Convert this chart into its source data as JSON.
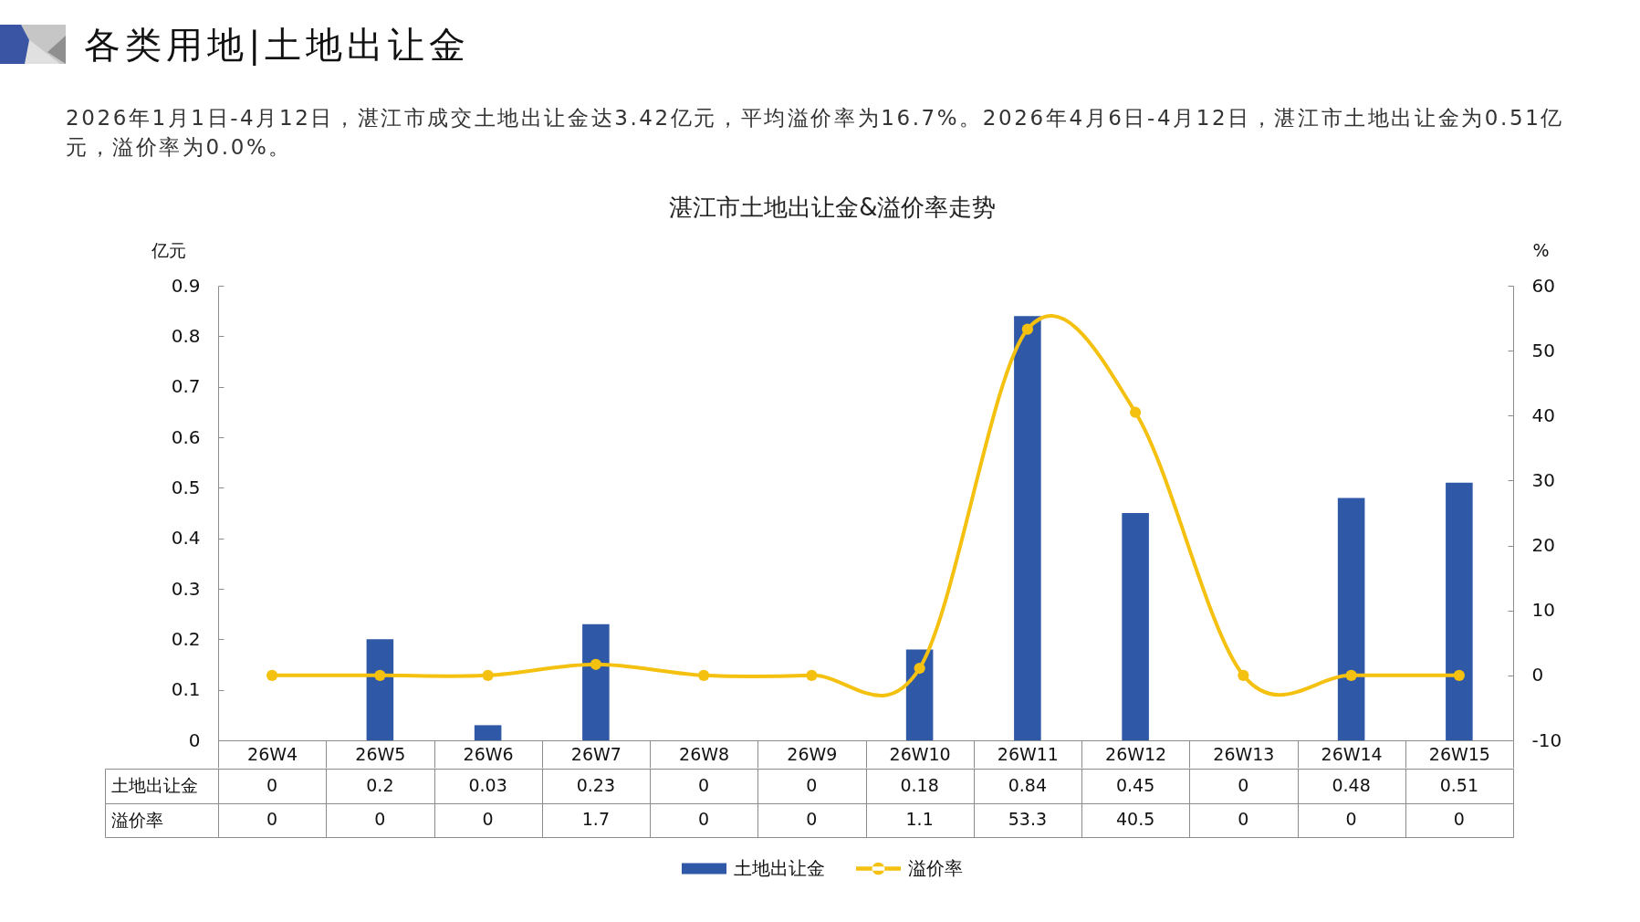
{
  "chart_data": {
    "type": "bar",
    "title": "各类用地|土地出让金",
    "subtitle": "2026年1月1日-4月12日，湛江市成交土地出让金达3.42亿元，平均溢价率为16.7%。2026年4月6日-4月12日，湛江市土地出让金为0.51亿元，溢价率为0.0%。",
    "annotations": [
      "湛江市土地出让金&溢价率走势"
    ],
    "ylabel": "亿元",
    "y2label": "%",
    "categories": [
      "26W4",
      "26W5",
      "26W6",
      "26W7",
      "26W8",
      "26W9",
      "26W10",
      "26W11",
      "26W12",
      "26W13",
      "26W14",
      "26W15"
    ],
    "series": [
      {
        "name": "土地出让金",
        "color": "#2f59a7",
        "values": [
          0,
          0.2,
          0.03,
          0.23,
          0,
          0,
          0.18,
          0.84,
          0.45,
          0,
          0.48,
          0.51
        ]
      },
      {
        "name": "溢价率",
        "type": "line",
        "axis": "y2",
        "color": "#f5c110",
        "values": [
          0,
          0,
          0,
          1.7,
          0,
          0,
          1.1,
          53.3,
          40.5,
          0,
          0,
          0
        ]
      }
    ],
    "ylim": [
      0,
      0.9
    ],
    "yticks": [
      0,
      0.1,
      0.2,
      0.3,
      0.4,
      0.5,
      0.6,
      0.7,
      0.8,
      0.9
    ],
    "y2lim": [
      -10,
      60
    ],
    "y2ticks": [
      -10,
      0,
      10,
      20,
      30,
      40,
      50,
      60
    ],
    "data_labels": true,
    "legend": "bottom",
    "grid": false,
    "marker": "circle"
  }
}
